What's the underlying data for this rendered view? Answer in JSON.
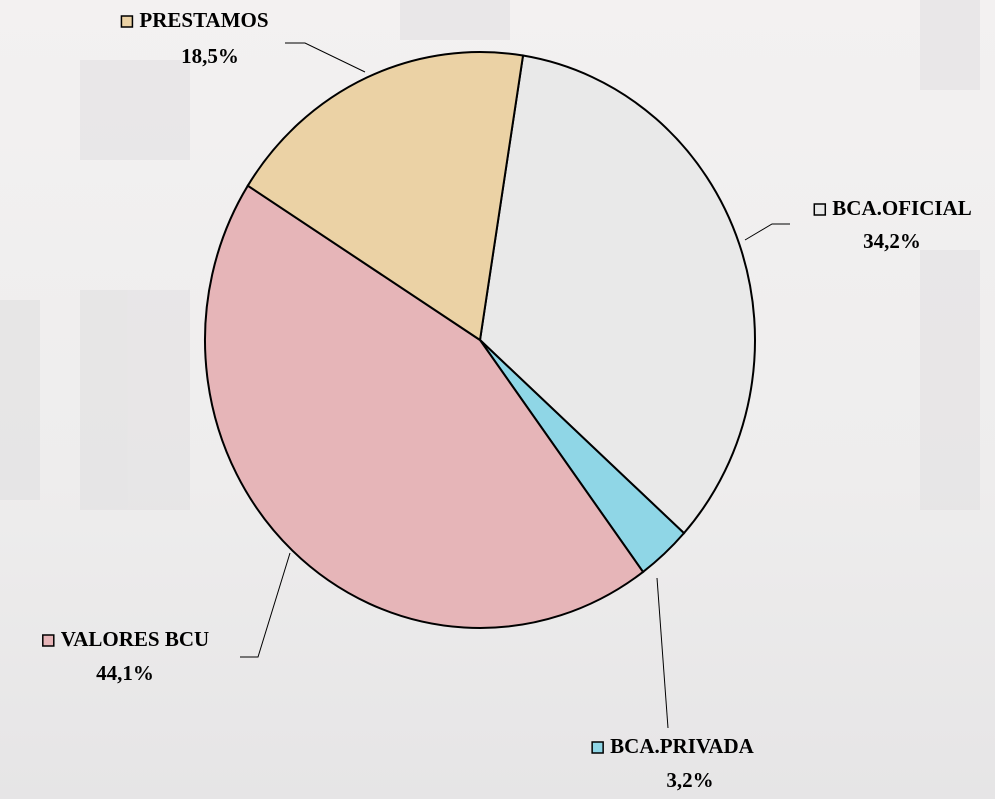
{
  "chart_data": {
    "type": "pie",
    "categories": [
      "BCA.OFICIAL",
      "BCA.PRIVADA",
      "VALORES BCU",
      "PRESTAMOS"
    ],
    "values": [
      34.2,
      3.2,
      44.1,
      18.5
    ],
    "value_labels": [
      "34,2%",
      "3,2%",
      "44,1%",
      "18,5%"
    ],
    "colors": [
      "#e9e9e9",
      "#8fd6e6",
      "#e6b5b8",
      "#ebd2a5"
    ]
  }
}
